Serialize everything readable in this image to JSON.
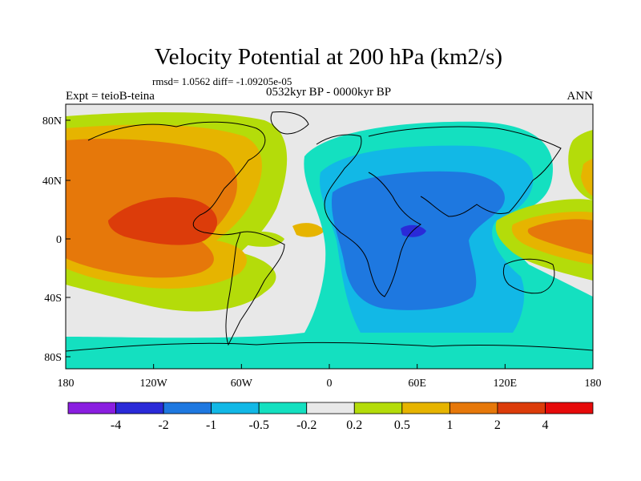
{
  "title": "Velocity Potential at 200 hPa (km2/s)",
  "stats": "rmsd= 1.0562 diff= -1.09205e-05",
  "experiment": "Expt = teioB-teina",
  "period": "0532kyr BP - 0000kyr BP",
  "season": "ANN",
  "lat_labels": [
    "80N",
    "40N",
    "0",
    "40S",
    "80S"
  ],
  "lon_labels": [
    "180",
    "120W",
    "60W",
    "0",
    "60E",
    "120E",
    "180"
  ],
  "colorbar": {
    "labels": [
      "-4",
      "-2",
      "-1",
      "-0.5",
      "-0.2",
      "0.2",
      "0.5",
      "1",
      "2",
      "4"
    ],
    "colors": [
      "#8a1ee0",
      "#2a2ad8",
      "#1e78e0",
      "#12b8e6",
      "#14e0c0",
      "#e8e8e8",
      "#b4dc0a",
      "#e6b400",
      "#e6780a",
      "#dc3c0a",
      "#e60a0a"
    ]
  },
  "field_colors": {
    "land_outline": "#000000",
    "neutral": "#e8e8e8",
    "pos_02": "#b4dc0a",
    "pos_05": "#e6b400",
    "pos_1": "#e6780a",
    "pos_2": "#dc3c0a",
    "neg_02": "#14e0c0",
    "neg_05": "#12b8e6",
    "neg_1": "#1e78e0",
    "neg_2": "#2a2ad8"
  }
}
